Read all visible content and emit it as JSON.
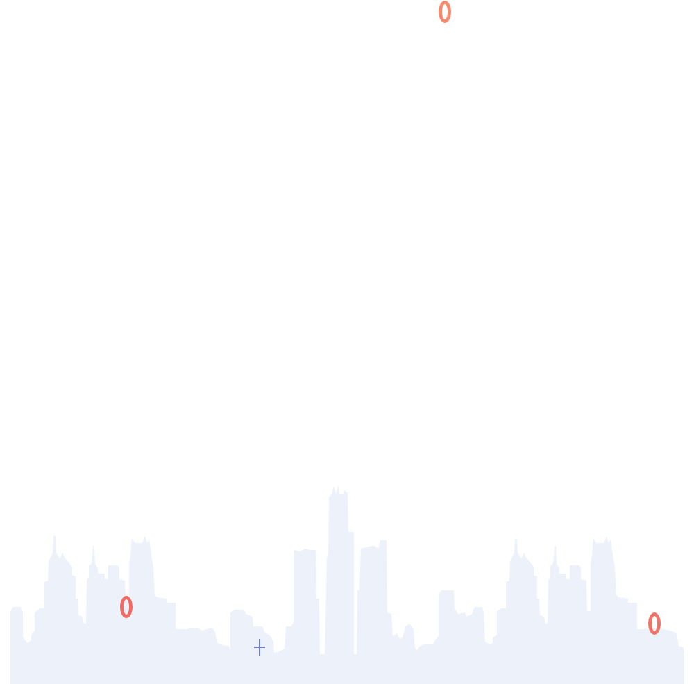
{
  "scene": {
    "background_color": "#ffffff",
    "skyline_color": "#edf2fa",
    "decorations": [
      {
        "name": "ring",
        "color": "#f58a6d"
      },
      {
        "name": "ring",
        "color": "#f16a66"
      },
      {
        "name": "ring",
        "color": "#f27468"
      },
      {
        "name": "plus-sign",
        "color": "#6a7fd0"
      }
    ]
  }
}
